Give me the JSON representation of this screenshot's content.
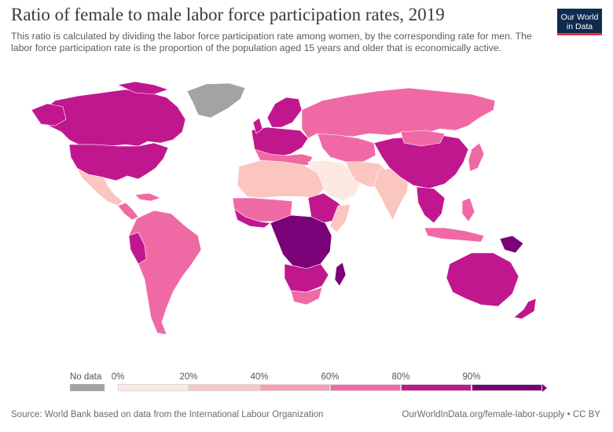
{
  "header": {
    "title": "Ratio of female to male labor force participation rates, 2019",
    "subtitle": "This ratio is calculated by dividing the labor force participation rate among women, by the corresponding rate for men. The labor force participation rate is the proportion of the population aged 15 years and older that is economically active.",
    "logo_line1": "Our World",
    "logo_line2": "in Data"
  },
  "legend": {
    "no_data_label": "No data",
    "ticks": [
      "0%",
      "20%",
      "40%",
      "60%",
      "80%",
      "90%"
    ],
    "colors": [
      "#fde9e1",
      "#fbc5c0",
      "#f89fb6",
      "#ef6aa5",
      "#c0178f",
      "#7a0177"
    ],
    "no_data_color": "#a3a3a3"
  },
  "footer": {
    "source": "Source: World Bank based on data from the International Labour Organization",
    "license": "OurWorldInData.org/female-labor-supply • CC BY"
  }
}
